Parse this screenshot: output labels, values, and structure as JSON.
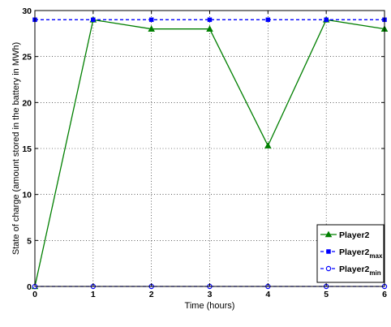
{
  "chart_data": {
    "type": "line",
    "title": "",
    "xlabel": "Time (hours)",
    "ylabel": "State of charge (amount stored in the battery in MWh)",
    "xlim": [
      0,
      6
    ],
    "ylim": [
      0,
      30
    ],
    "x_ticks": [
      0,
      1,
      2,
      3,
      4,
      5,
      6
    ],
    "y_ticks": [
      0,
      5,
      10,
      15,
      20,
      25,
      30
    ],
    "grid": true,
    "legend_position": "bottom-right",
    "series": [
      {
        "name": "Player2",
        "legend_main": "Player2",
        "legend_sub": "",
        "color": "#007f00",
        "line_style": "solid",
        "marker": "triangle",
        "x": [
          0,
          1,
          2,
          3,
          4,
          5,
          6
        ],
        "values": [
          0,
          29,
          28,
          28,
          15.3,
          29,
          28
        ]
      },
      {
        "name": "Player2max",
        "legend_main": "Player2",
        "legend_sub": "max",
        "color": "#0000ff",
        "line_style": "dashed",
        "marker": "square",
        "x": [
          0,
          1,
          2,
          3,
          4,
          5,
          6
        ],
        "values": [
          29,
          29,
          29,
          29,
          29,
          29,
          29
        ]
      },
      {
        "name": "Player2min",
        "legend_main": "Player2",
        "legend_sub": "min",
        "color": "#0000ff",
        "line_style": "dashed",
        "marker": "circle",
        "x": [
          0,
          1,
          2,
          3,
          4,
          5,
          6
        ],
        "values": [
          0,
          0,
          0,
          0,
          0,
          0,
          0
        ]
      }
    ]
  }
}
